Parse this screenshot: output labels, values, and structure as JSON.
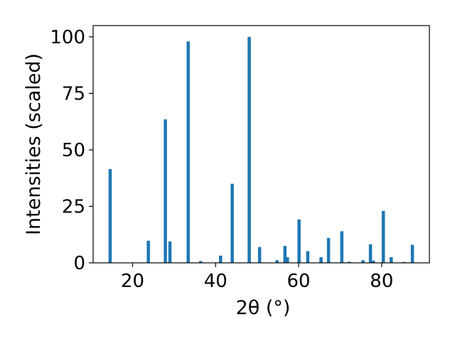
{
  "chart_data": {
    "type": "bar",
    "xlabel": "2θ (°)",
    "ylabel": "Intensities (scaled)",
    "xlim": [
      10.5,
      91.5
    ],
    "ylim": [
      0,
      105
    ],
    "x_ticks": [
      20,
      40,
      60,
      80
    ],
    "y_ticks": [
      0,
      25,
      50,
      75,
      100
    ],
    "bar_color": "#1f77b4",
    "grid": false,
    "legend": "none",
    "bars": [
      {
        "x": 14.6,
        "value": 41.5
      },
      {
        "x": 23.8,
        "value": 9.8
      },
      {
        "x": 27.9,
        "value": 63.5
      },
      {
        "x": 29.0,
        "value": 9.5
      },
      {
        "x": 33.4,
        "value": 98.0
      },
      {
        "x": 36.4,
        "value": 0.8
      },
      {
        "x": 41.2,
        "value": 3.2
      },
      {
        "x": 44.0,
        "value": 35.0
      },
      {
        "x": 48.1,
        "value": 100.0
      },
      {
        "x": 50.6,
        "value": 7.0
      },
      {
        "x": 54.8,
        "value": 1.2
      },
      {
        "x": 56.7,
        "value": 7.5
      },
      {
        "x": 57.3,
        "value": 2.5
      },
      {
        "x": 60.1,
        "value": 19.2
      },
      {
        "x": 62.2,
        "value": 5.2
      },
      {
        "x": 65.4,
        "value": 2.5
      },
      {
        "x": 67.2,
        "value": 11.0
      },
      {
        "x": 70.4,
        "value": 14.0
      },
      {
        "x": 72.2,
        "value": 0.5
      },
      {
        "x": 75.5,
        "value": 1.2
      },
      {
        "x": 77.3,
        "value": 8.2
      },
      {
        "x": 78.0,
        "value": 1.0
      },
      {
        "x": 80.4,
        "value": 23.0
      },
      {
        "x": 82.3,
        "value": 2.5
      },
      {
        "x": 85.3,
        "value": 0.4
      },
      {
        "x": 87.4,
        "value": 8.0
      }
    ]
  }
}
